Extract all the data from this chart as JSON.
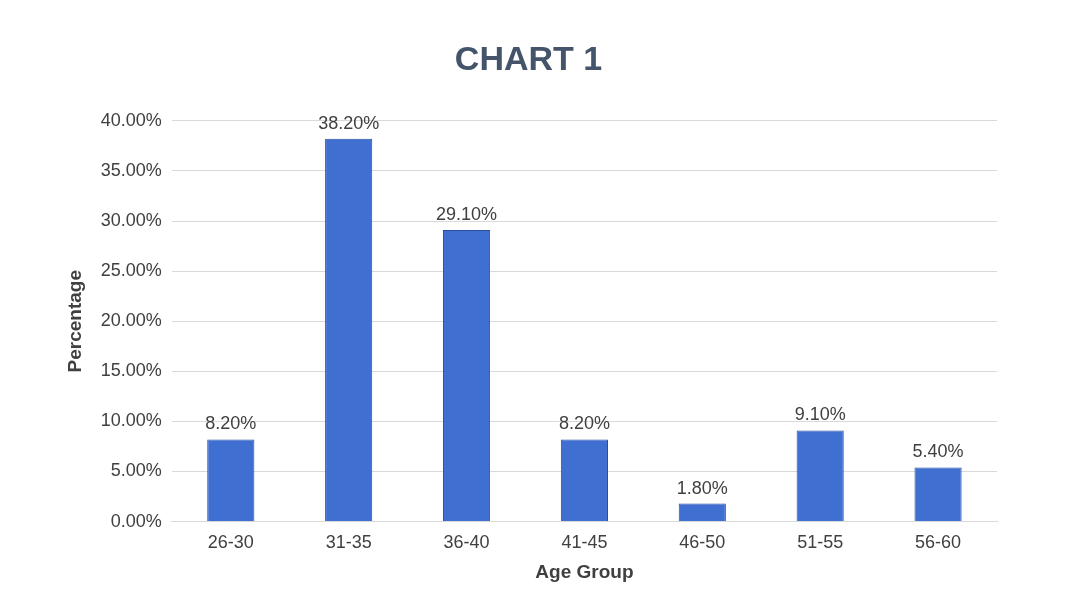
{
  "chart_data": {
    "type": "bar",
    "title": "CHART 1",
    "xlabel": "Age Group",
    "ylabel": "Percentage",
    "categories": [
      "26-30",
      "31-35",
      "36-40",
      "41-45",
      "46-50",
      "51-55",
      "56-60"
    ],
    "values": [
      8.2,
      38.2,
      29.1,
      8.2,
      1.8,
      9.1,
      5.4
    ],
    "value_labels": [
      "8.20%",
      "38.20%",
      "29.10%",
      "8.20%",
      "1.80%",
      "9.10%",
      "5.40%"
    ],
    "color": "#3f6fd1",
    "ylim": [
      0,
      40
    ],
    "yticks": [
      {
        "value": 0,
        "label": "0.00%"
      },
      {
        "value": 5,
        "label": "5.00%"
      },
      {
        "value": 10,
        "label": "10.00%"
      },
      {
        "value": 15,
        "label": "15.00%"
      },
      {
        "value": 20,
        "label": "20.00%"
      },
      {
        "value": 25,
        "label": "25.00%"
      },
      {
        "value": 30,
        "label": "30.00%"
      },
      {
        "value": 35,
        "label": "35.00%"
      },
      {
        "value": 40,
        "label": "40.00%"
      }
    ],
    "grid": "y",
    "legend": false
  }
}
